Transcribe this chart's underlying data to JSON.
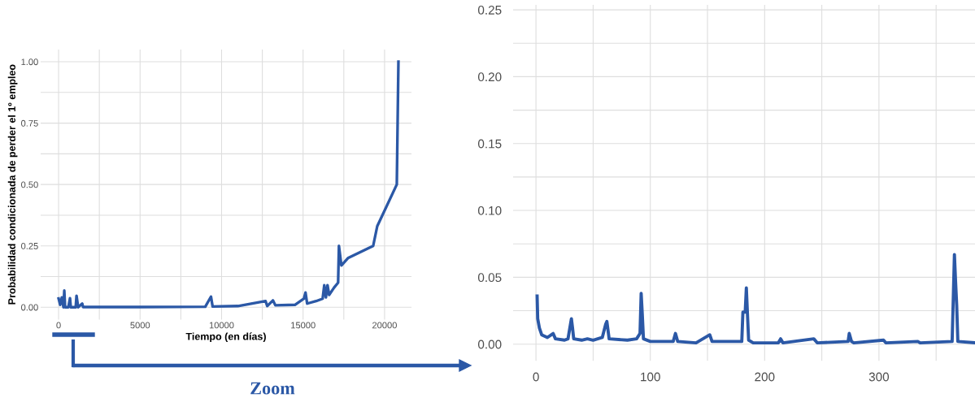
{
  "chart_data": [
    {
      "type": "line",
      "xlabel": "Tiempo (en días)",
      "ylabel": "Probabilidad condicionada de perder el 1º empleo",
      "annotations": [
        "Zoom"
      ],
      "grid": true,
      "legend": false,
      "marker": "none",
      "line_style": "solid",
      "xlim": [
        -1100,
        21650
      ],
      "ylim": [
        -0.05,
        1.05
      ],
      "xticks": [
        0,
        {
          "value": 2500,
          "label": null
        },
        5000,
        {
          "value": 7500,
          "label": null
        },
        10000,
        {
          "value": 12500,
          "label": null
        },
        15000,
        {
          "value": 17500,
          "label": null
        },
        20000
      ],
      "yticks": [
        {
          "value": 0,
          "label": "0.00"
        },
        {
          "value": 0.125,
          "label": null
        },
        {
          "value": 0.25,
          "label": "0.25"
        },
        {
          "value": 0.375,
          "label": null
        },
        {
          "value": 0.5,
          "label": "0.50"
        },
        {
          "value": 0.625,
          "label": null
        },
        {
          "value": 0.75,
          "label": "0.75"
        },
        {
          "value": 0.875,
          "label": null
        },
        {
          "value": 1,
          "label": "1.00"
        }
      ],
      "series": [
        {
          "color": "#2b58a6",
          "x": [
            0,
            100,
            200,
            300,
            350,
            400,
            600,
            700,
            750,
            1050,
            1100,
            1200,
            1450,
            1500,
            5000,
            9000,
            9350,
            9450,
            11000,
            12700,
            12800,
            13150,
            13300,
            14500,
            15050,
            15150,
            15250,
            15800,
            16200,
            16300,
            16400,
            16500,
            16600,
            16900,
            17150,
            17200,
            17350,
            17750,
            19300,
            19550,
            20750,
            20800,
            20850
          ],
          "values": [
            0.036,
            0.01,
            0.04,
            0.0,
            0.068,
            0.0,
            0.0,
            0.037,
            0.0,
            0.0,
            0.047,
            0.0,
            0.015,
            0.001,
            0.001,
            0.002,
            0.043,
            0.003,
            0.005,
            0.025,
            0.005,
            0.028,
            0.008,
            0.01,
            0.035,
            0.06,
            0.015,
            0.025,
            0.035,
            0.09,
            0.04,
            0.09,
            0.05,
            0.08,
            0.1,
            0.25,
            0.17,
            0.2,
            0.25,
            0.33,
            0.5,
            0.75,
            1.0
          ]
        }
      ]
    },
    {
      "type": "line",
      "grid": true,
      "legend": false,
      "marker": "none",
      "line_style": "solid",
      "xlim": [
        -20,
        384
      ],
      "ylim": [
        -0.0125,
        0.2537
      ],
      "xticks": [
        0,
        {
          "value": 50,
          "label": null
        },
        100,
        {
          "value": 150,
          "label": null
        },
        200,
        {
          "value": 250,
          "label": null
        },
        300,
        {
          "value": 350,
          "label": null
        }
      ],
      "yticks": [
        {
          "value": 0,
          "label": "0.00"
        },
        {
          "value": 0.025,
          "label": null
        },
        {
          "value": 0.05,
          "label": "0.05"
        },
        {
          "value": 0.075,
          "label": null
        },
        {
          "value": 0.1,
          "label": "0.10"
        },
        {
          "value": 0.125,
          "label": null
        },
        {
          "value": 0.15,
          "label": "0.15"
        },
        {
          "value": 0.175,
          "label": null
        },
        {
          "value": 0.2,
          "label": "0.20"
        },
        {
          "value": 0.225,
          "label": null
        },
        {
          "value": 0.25,
          "label": "0.25"
        }
      ],
      "series": [
        {
          "color": "#2b58a6",
          "x": [
            1,
            1.5,
            3,
            5,
            10,
            15,
            17,
            25,
            28,
            31,
            32,
            33,
            40,
            45,
            50,
            58,
            61,
            62,
            64,
            80,
            88,
            91,
            92,
            93,
            94,
            100,
            120,
            122,
            124,
            140,
            152,
            154,
            180,
            181,
            183,
            184,
            185,
            186,
            190,
            212,
            214,
            216,
            243,
            246,
            273,
            274,
            276,
            278,
            304,
            306,
            334,
            336,
            364,
            365,
            366,
            367,
            368,
            369,
            384
          ],
          "values": [
            0.036,
            0.019,
            0.012,
            0.007,
            0.005,
            0.008,
            0.004,
            0.003,
            0.004,
            0.019,
            0.012,
            0.004,
            0.003,
            0.004,
            0.003,
            0.005,
            0.015,
            0.017,
            0.004,
            0.003,
            0.004,
            0.008,
            0.038,
            0.022,
            0.004,
            0.002,
            0.002,
            0.008,
            0.002,
            0.001,
            0.007,
            0.002,
            0.002,
            0.024,
            0.024,
            0.042,
            0.022,
            0.003,
            0.001,
            0.001,
            0.004,
            0.001,
            0.004,
            0.001,
            0.002,
            0.008,
            0.002,
            0.001,
            0.003,
            0.001,
            0.002,
            0.001,
            0.002,
            0.034,
            0.067,
            0.047,
            0.029,
            0.002,
            0.001
          ]
        }
      ]
    }
  ]
}
